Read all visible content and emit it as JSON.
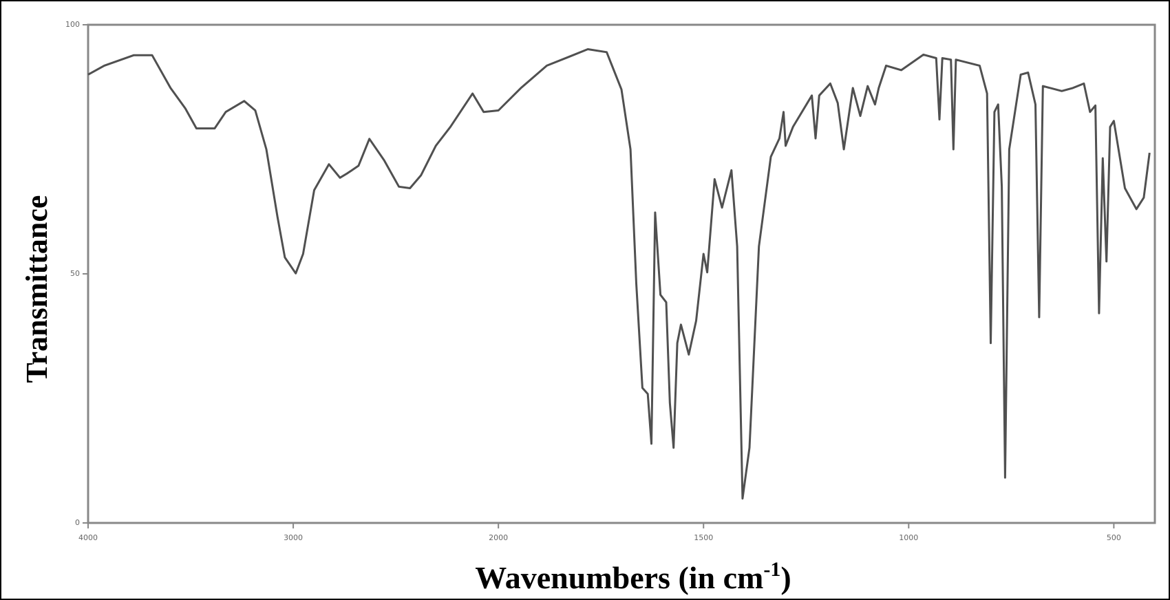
{
  "chart_data": {
    "type": "line",
    "y_label": "Transmittance",
    "x_label": {
      "text": "Wavenumbers (in cm",
      "superscript": "-1",
      "suffix": ")"
    },
    "x": [
      4000,
      3921,
      3777,
      3688,
      3598,
      3526,
      3472,
      3383,
      3329,
      3239,
      3185,
      3131,
      3077,
      3041,
      2988,
      2952,
      2898,
      2826,
      2772,
      2736,
      2682,
      2629,
      2557,
      2485,
      2431,
      2377,
      2305,
      2234,
      2126,
      2072,
      2000,
      1945,
      1882,
      1827,
      1782,
      1736,
      1700,
      1678,
      1664,
      1649,
      1636,
      1627,
      1618,
      1605,
      1591,
      1582,
      1573,
      1564,
      1555,
      1536,
      1518,
      1500,
      1491,
      1473,
      1455,
      1432,
      1418,
      1405,
      1388,
      1365,
      1336,
      1315,
      1305,
      1300,
      1282,
      1236,
      1227,
      1218,
      1191,
      1173,
      1158,
      1136,
      1118,
      1100,
      1082,
      1073,
      1055,
      1018,
      964,
      933,
      925,
      918,
      897,
      891,
      885,
      827,
      809,
      800,
      791,
      782,
      773,
      765,
      755,
      727,
      709,
      691,
      682,
      673,
      627,
      600,
      573,
      558,
      545,
      536,
      527,
      518,
      509,
      500,
      473,
      445,
      427,
      413
    ],
    "values": [
      90.0,
      91.8,
      93.9,
      93.9,
      87.3,
      83.2,
      79.2,
      79.2,
      82.5,
      84.7,
      82.8,
      75.0,
      61.5,
      53.3,
      50.1,
      54.0,
      66.8,
      72.0,
      69.3,
      70.2,
      71.7,
      77.1,
      72.8,
      67.5,
      67.2,
      69.8,
      75.7,
      79.5,
      86.2,
      82.5,
      82.8,
      87.3,
      91.8,
      93.6,
      95.1,
      94.5,
      87.0,
      75.0,
      48.1,
      27.1,
      25.9,
      15.9,
      62.3,
      45.8,
      44.3,
      24.1,
      15.1,
      36.1,
      39.8,
      33.8,
      40.6,
      54.0,
      50.3,
      69.0,
      63.3,
      70.8,
      55.5,
      4.9,
      15.1,
      55.5,
      73.5,
      77.2,
      82.5,
      75.7,
      79.5,
      85.8,
      77.2,
      85.8,
      88.2,
      84.3,
      75.0,
      87.3,
      81.7,
      87.7,
      84.0,
      87.3,
      91.8,
      90.9,
      94.0,
      93.3,
      81.0,
      93.3,
      93.0,
      75.0,
      93.0,
      91.8,
      86.2,
      36.1,
      82.5,
      84.0,
      67.5,
      9.1,
      75.0,
      90.0,
      90.4,
      84.0,
      41.3,
      87.7,
      86.7,
      87.3,
      88.2,
      82.5,
      83.8,
      42.1,
      73.2,
      52.5,
      79.5,
      80.7,
      67.2,
      63.0,
      65.3,
      74.3
    ],
    "color": "#505050",
    "xlim": [
      4000,
      400
    ],
    "xticks": [
      4000,
      3000,
      2000,
      1500,
      1000,
      500
    ],
    "x_scale_break": {
      "at": 2000,
      "factor": 2
    },
    "ylim": [
      0,
      100
    ],
    "yticks": [
      0,
      50,
      100
    ]
  }
}
